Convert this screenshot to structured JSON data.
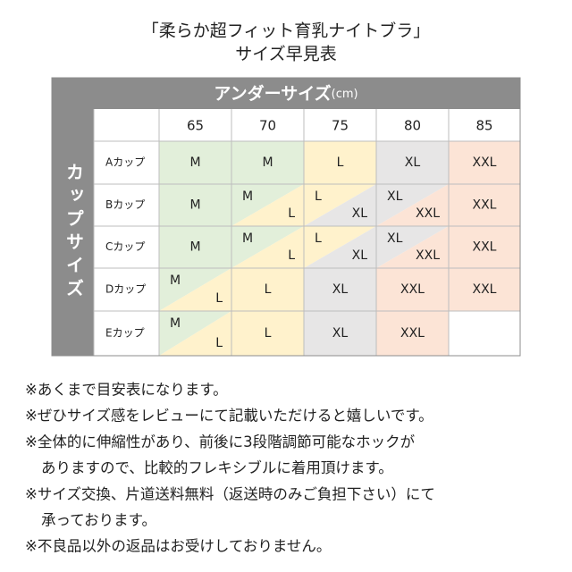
{
  "header": {
    "title": "「柔らか超フィット育乳ナイトブラ」",
    "subtitle": "サイズ早見表"
  },
  "table": {
    "header": "アンダーサイズ",
    "unit": "(cm)",
    "row_group": "カップサイズ",
    "columns": [
      "65",
      "70",
      "75",
      "80",
      "85"
    ],
    "size_colors": {
      "M": "#e2efda",
      "L": "#fff2cc",
      "XL": "#e7e6e6",
      "XXL": "#fce4d6"
    },
    "rows": [
      {
        "label": "Aカップ",
        "cells": [
          [
            "M"
          ],
          [
            "M"
          ],
          [
            "L"
          ],
          [
            "XL"
          ],
          [
            "XXL"
          ]
        ]
      },
      {
        "label": "Bカップ",
        "cells": [
          [
            "M"
          ],
          [
            "M",
            "L"
          ],
          [
            "L",
            "XL"
          ],
          [
            "XL",
            "XXL"
          ],
          [
            "XXL"
          ]
        ]
      },
      {
        "label": "Cカップ",
        "cells": [
          [
            "M"
          ],
          [
            "M",
            "L"
          ],
          [
            "L",
            "XL"
          ],
          [
            "XL",
            "XXL"
          ],
          [
            "XXL"
          ]
        ]
      },
      {
        "label": "Dカップ",
        "cells": [
          [
            "M",
            "L"
          ],
          [
            "L"
          ],
          [
            "XL"
          ],
          [
            "XXL"
          ],
          [
            "XXL"
          ]
        ]
      },
      {
        "label": "Eカップ",
        "cells": [
          [
            "M",
            "L"
          ],
          [
            "L"
          ],
          [
            "XL"
          ],
          [
            "XXL"
          ],
          null
        ]
      }
    ]
  },
  "notes": [
    [
      "※あくまで目安表になります。"
    ],
    [
      "※ぜひサイズ感をレビューにて記載いただけると嬉しいです。"
    ],
    [
      "※全体的に伸縮性があり、前後に3段階調節可能なホックが",
      "ありますので、比較的フレキシブルに着用頂けます。"
    ],
    [
      "※サイズ交換、片道送料無料（返送時のみご負担下さい）にて",
      "承っております。"
    ],
    [
      "※不良品以外の返品はお受けしておりません。"
    ]
  ]
}
